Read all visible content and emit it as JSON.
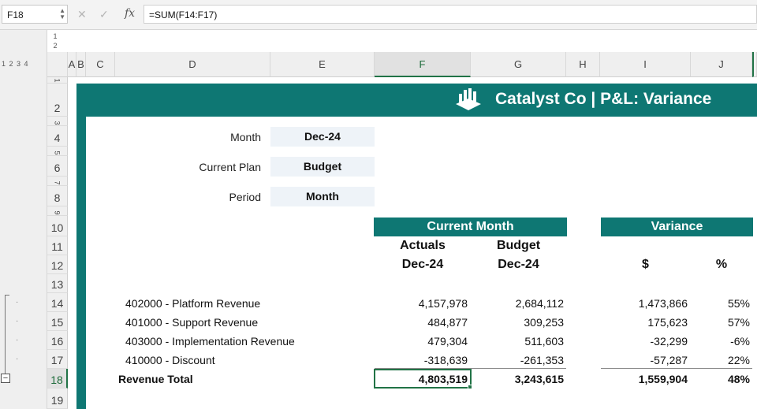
{
  "formula_bar": {
    "name_box": "F18",
    "formula": "=SUM(F14:F17)",
    "fx_label": "fx"
  },
  "outline": {
    "row_levels": "1 2 3 4",
    "col_levels": [
      "1",
      "2"
    ]
  },
  "columns": [
    "A",
    "B",
    "C",
    "D",
    "E",
    "F",
    "G",
    "H",
    "I",
    "J"
  ],
  "rows": [
    "1",
    "2",
    "3",
    "4",
    "5",
    "6",
    "7",
    "8",
    "9",
    "10",
    "11",
    "12",
    "13",
    "14",
    "15",
    "16",
    "17",
    "18",
    "19"
  ],
  "header": {
    "title": "Catalyst Co | P&L: Variance"
  },
  "params": {
    "month_label": "Month",
    "month_value": "Dec-24",
    "plan_label": "Current Plan",
    "plan_value": "Budget",
    "period_label": "Period",
    "period_value": "Month"
  },
  "table": {
    "current_month_band": "Current Month",
    "variance_band": "Variance",
    "actuals_label": "Actuals",
    "actuals_date": "Dec-24",
    "budget_label": "Budget",
    "budget_date": "Dec-24",
    "var_dollar": "$",
    "var_pct": "%",
    "rows": [
      {
        "account": "402000 - Platform Revenue",
        "actuals": "4,157,978",
        "budget": "2,684,112",
        "var": "1,473,866",
        "pct": "55%"
      },
      {
        "account": "401000 - Support Revenue",
        "actuals": "484,877",
        "budget": "309,253",
        "var": "175,623",
        "pct": "57%"
      },
      {
        "account": "403000 - Implementation Revenue",
        "actuals": "479,304",
        "budget": "511,603",
        "var": "-32,299",
        "pct": "-6%"
      },
      {
        "account": "410000 - Discount",
        "actuals": "-318,639",
        "budget": "-261,353",
        "var": "-57,287",
        "pct": "22%"
      }
    ],
    "total": {
      "label": "Revenue Total",
      "actuals": "4,803,519",
      "budget": "3,243,615",
      "var": "1,559,904",
      "pct": "48%"
    }
  },
  "colors": {
    "brand_teal": "#0e7773",
    "selection_green": "#217346",
    "param_fill": "#eef3f8"
  }
}
